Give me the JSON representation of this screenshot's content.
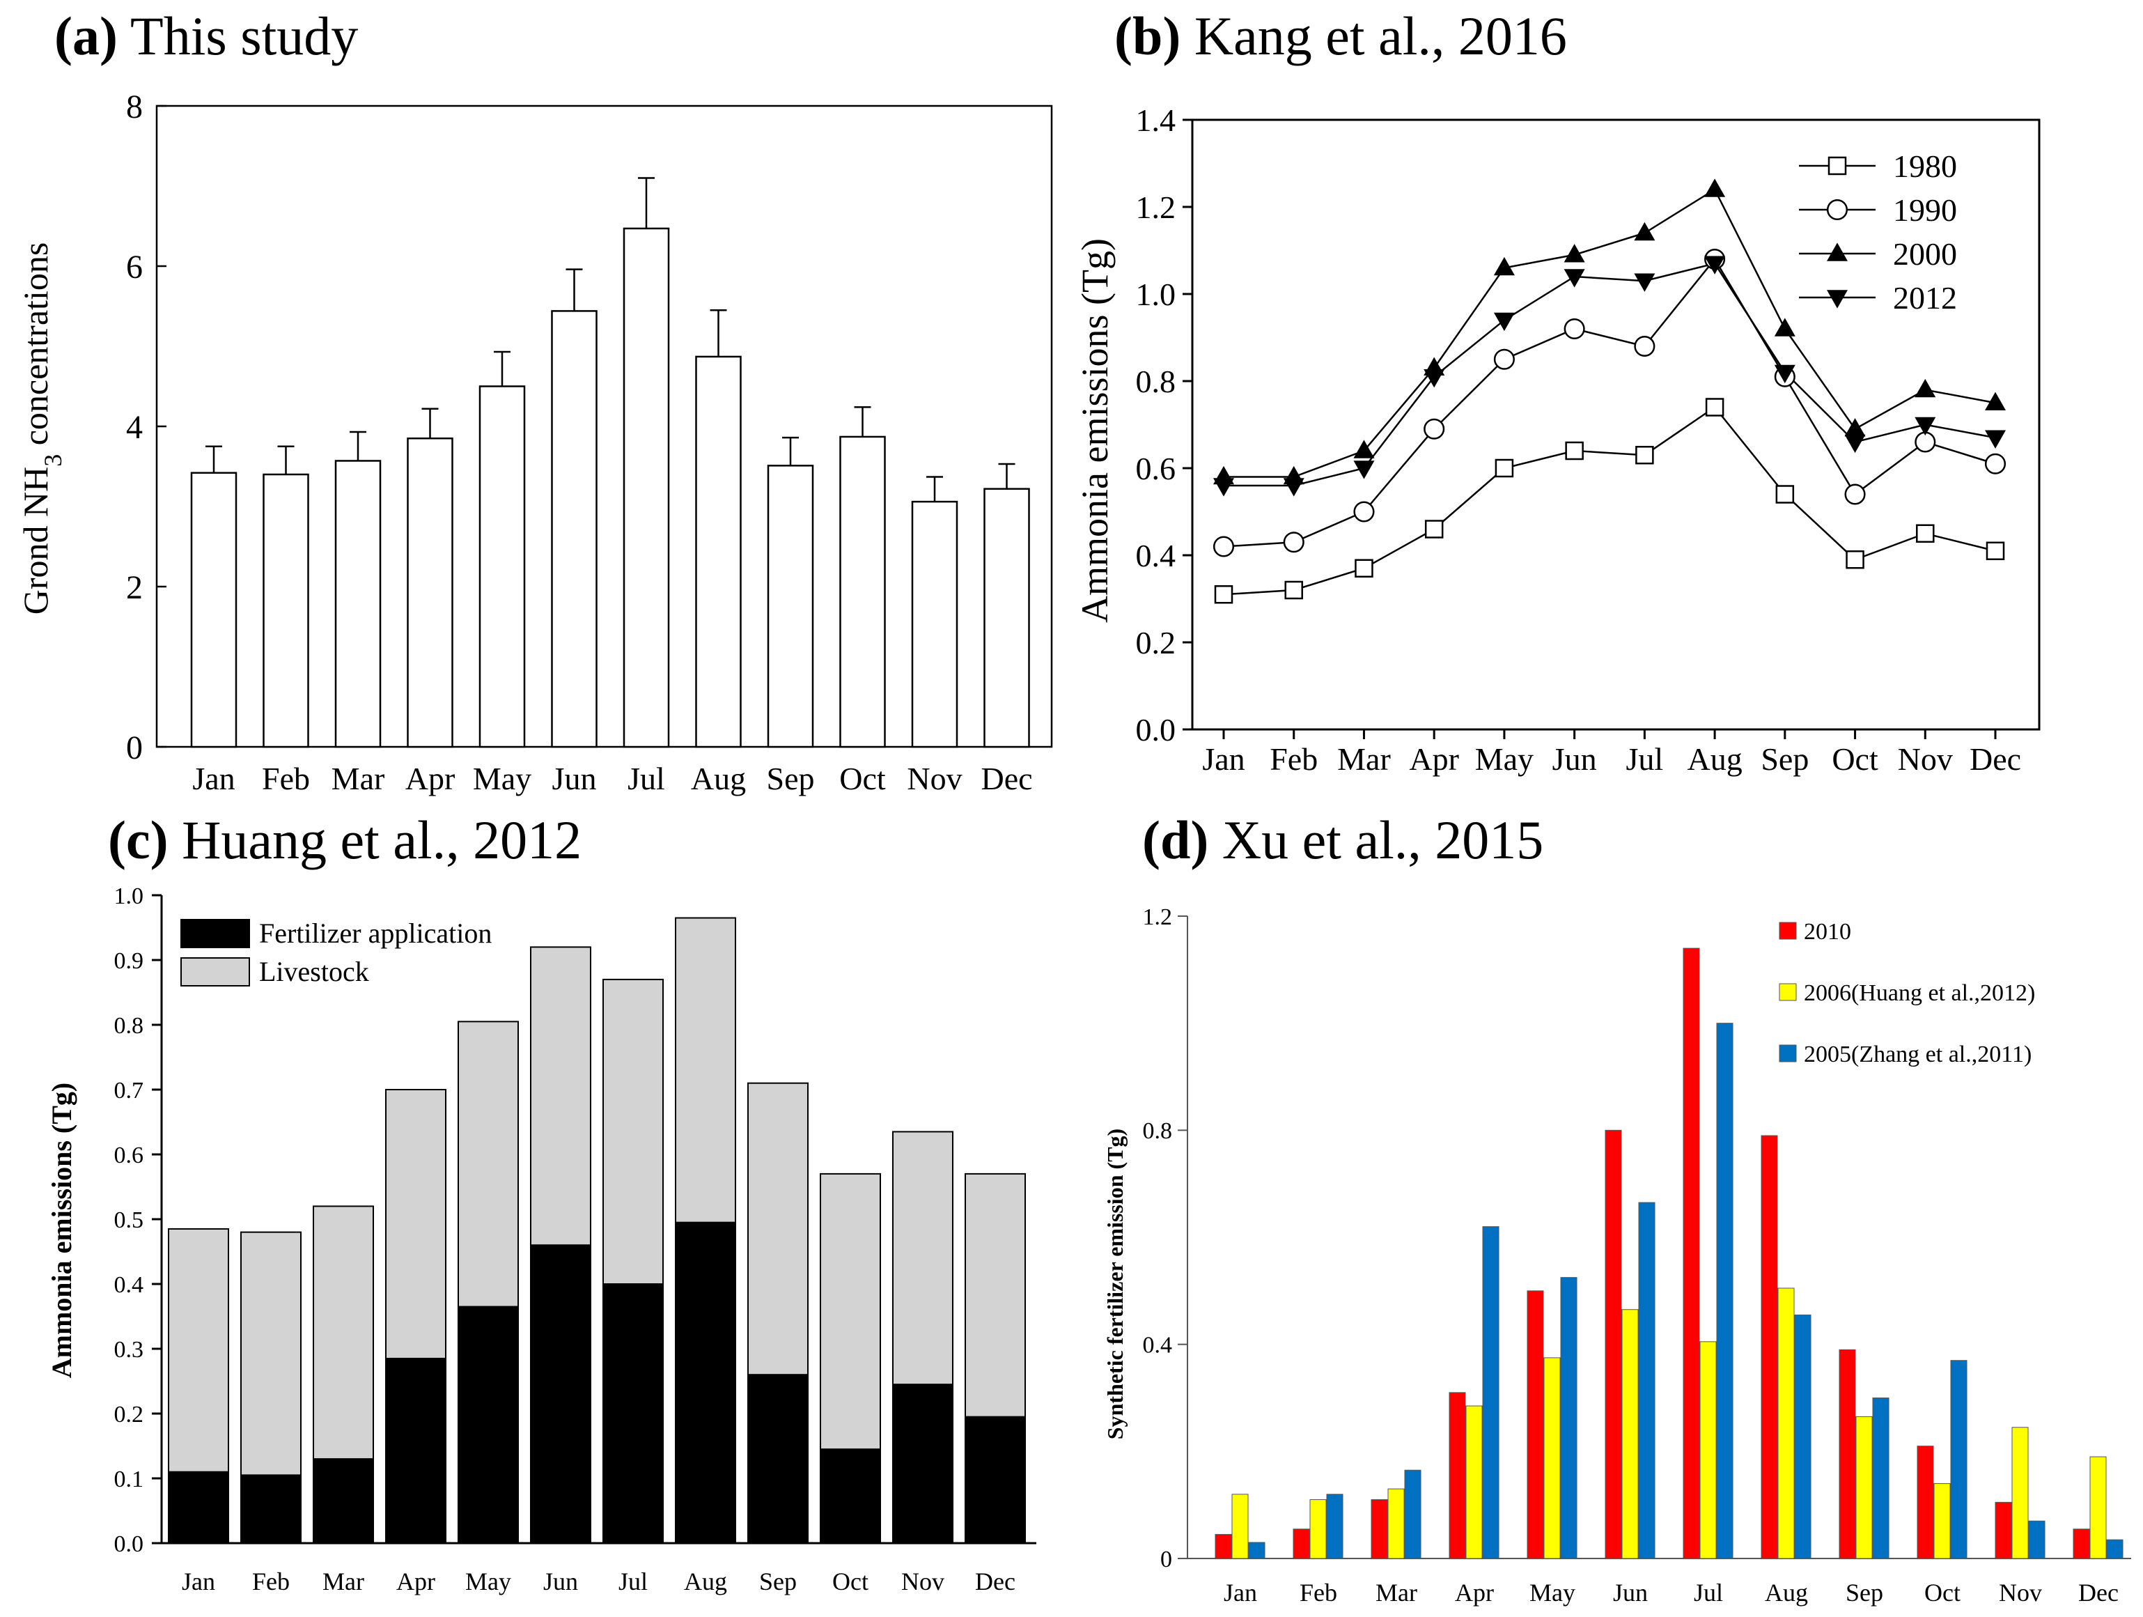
{
  "chart_data": [
    {
      "id": "a",
      "type": "bar",
      "panel_label": "(a)",
      "title": "This study",
      "xlabel": "",
      "ylabel": "Grond NH3 concentrations",
      "ylabel_main": "Grond NH",
      "ylabel_sub": "3",
      "ylabel_tail": " concentrations",
      "ylim": [
        0,
        8
      ],
      "yticks": [
        "0",
        "2",
        "4",
        "6",
        "8"
      ],
      "categories": [
        "Jan",
        "Feb",
        "Mar",
        "Apr",
        "May",
        "Jun",
        "Jul",
        "Aug",
        "Sep",
        "Oct",
        "Nov",
        "Dec"
      ],
      "values": [
        3.42,
        3.4,
        3.57,
        3.85,
        4.5,
        5.44,
        6.47,
        4.87,
        3.51,
        3.87,
        3.06,
        3.22
      ],
      "error": [
        0.33,
        0.35,
        0.36,
        0.37,
        0.43,
        0.52,
        0.63,
        0.58,
        0.35,
        0.37,
        0.31,
        0.31
      ],
      "colors": {
        "bar_fill": "#ffffff",
        "bar_stroke": "#000000"
      }
    },
    {
      "id": "b",
      "type": "line",
      "panel_label": "(b)",
      "title": "Kang et al., 2016",
      "xlabel": "",
      "ylabel": "Ammonia emissions (Tg)",
      "ylim": [
        0,
        1.4
      ],
      "yticks": [
        "0.0",
        "0.2",
        "0.4",
        "0.6",
        "0.8",
        "1.0",
        "1.2",
        "1.4"
      ],
      "categories": [
        "Jan",
        "Feb",
        "Mar",
        "Apr",
        "May",
        "Jun",
        "Jul",
        "Aug",
        "Sep",
        "Oct",
        "Nov",
        "Dec"
      ],
      "legend_position": "top-right",
      "series": [
        {
          "name": "1980",
          "marker": "square-open",
          "values": [
            0.31,
            0.32,
            0.37,
            0.46,
            0.6,
            0.64,
            0.63,
            0.74,
            0.54,
            0.39,
            0.45,
            0.41
          ]
        },
        {
          "name": "1990",
          "marker": "circle-open",
          "values": [
            0.42,
            0.43,
            0.5,
            0.69,
            0.85,
            0.92,
            0.88,
            1.08,
            0.81,
            0.54,
            0.66,
            0.61
          ]
        },
        {
          "name": "2000",
          "marker": "triangle-up",
          "values": [
            0.58,
            0.58,
            0.64,
            0.83,
            1.06,
            1.09,
            1.14,
            1.24,
            0.92,
            0.69,
            0.78,
            0.75
          ]
        },
        {
          "name": "2012",
          "marker": "triangle-down",
          "values": [
            0.56,
            0.56,
            0.6,
            0.81,
            0.94,
            1.04,
            1.03,
            1.07,
            0.82,
            0.66,
            0.7,
            0.67
          ]
        }
      ]
    },
    {
      "id": "c",
      "type": "bar",
      "stacked": true,
      "panel_label": "(c)",
      "title": "Huang et al., 2012",
      "xlabel": "",
      "ylabel": "Ammonia emissions (Tg)",
      "ylim": [
        0,
        1.0
      ],
      "yticks": [
        "0.0",
        "0.1",
        "0.2",
        "0.3",
        "0.4",
        "0.5",
        "0.6",
        "0.7",
        "0.8",
        "0.9",
        "1.0"
      ],
      "categories": [
        "Jan",
        "Feb",
        "Mar",
        "Apr",
        "May",
        "Jun",
        "Jul",
        "Aug",
        "Sep",
        "Oct",
        "Nov",
        "Dec"
      ],
      "legend_position": "top-left",
      "series": [
        {
          "name": "Fertilizer application",
          "color": "#000000",
          "values": [
            0.11,
            0.105,
            0.13,
            0.285,
            0.365,
            0.46,
            0.4,
            0.495,
            0.26,
            0.145,
            0.245,
            0.195
          ]
        },
        {
          "name": "Livestock",
          "color": "#d3d3d3",
          "values": [
            0.375,
            0.375,
            0.39,
            0.415,
            0.44,
            0.46,
            0.47,
            0.47,
            0.45,
            0.425,
            0.39,
            0.375
          ]
        }
      ]
    },
    {
      "id": "d",
      "type": "bar",
      "panel_label": "(d)",
      "title": "Xu et al., 2015",
      "xlabel": "",
      "ylabel": "Synthetic fertilizer emission (Tg)",
      "ylim": [
        0,
        1.2
      ],
      "yticks": [
        "0",
        "0.4",
        "0.8",
        "1.2"
      ],
      "categories": [
        "Jan",
        "Feb",
        "Mar",
        "Apr",
        "May",
        "Jun",
        "Jul",
        "Aug",
        "Sep",
        "Oct",
        "Nov",
        "Dec"
      ],
      "legend_position": "top-right",
      "series": [
        {
          "name": "2010",
          "color": "#ff0000",
          "values": [
            0.045,
            0.055,
            0.11,
            0.31,
            0.5,
            0.8,
            1.14,
            0.79,
            0.39,
            0.21,
            0.105,
            0.055
          ]
        },
        {
          "name": "2006(Huang et al.,2012)",
          "color": "#ffff00",
          "values": [
            0.12,
            0.11,
            0.13,
            0.285,
            0.375,
            0.465,
            0.405,
            0.505,
            0.265,
            0.14,
            0.245,
            0.19
          ]
        },
        {
          "name": "2005(Zhang et al.,2011)",
          "color": "#0070c0",
          "values": [
            0.03,
            0.12,
            0.165,
            0.62,
            0.525,
            0.665,
            1.0,
            0.455,
            0.3,
            0.37,
            0.07,
            0.035
          ]
        }
      ]
    }
  ]
}
